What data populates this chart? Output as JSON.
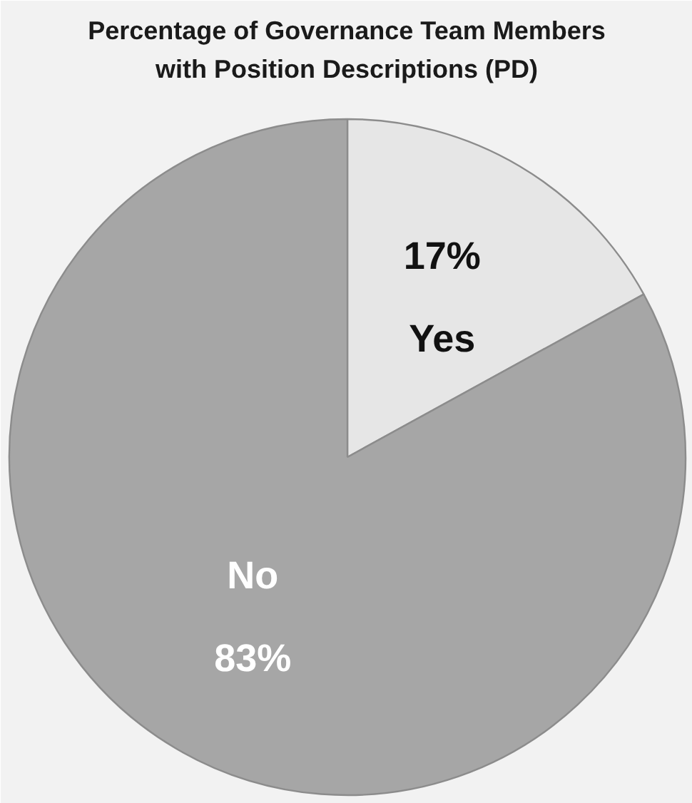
{
  "chart_data": {
    "type": "pie",
    "title": "Percentage of Governance Team Members with Position Descriptions (PD)",
    "categories": [
      "Yes",
      "No"
    ],
    "values": [
      17,
      83
    ],
    "value_labels": [
      "17%",
      "83%"
    ],
    "colors": [
      "#e6e6e6",
      "#a6a6a6"
    ]
  }
}
